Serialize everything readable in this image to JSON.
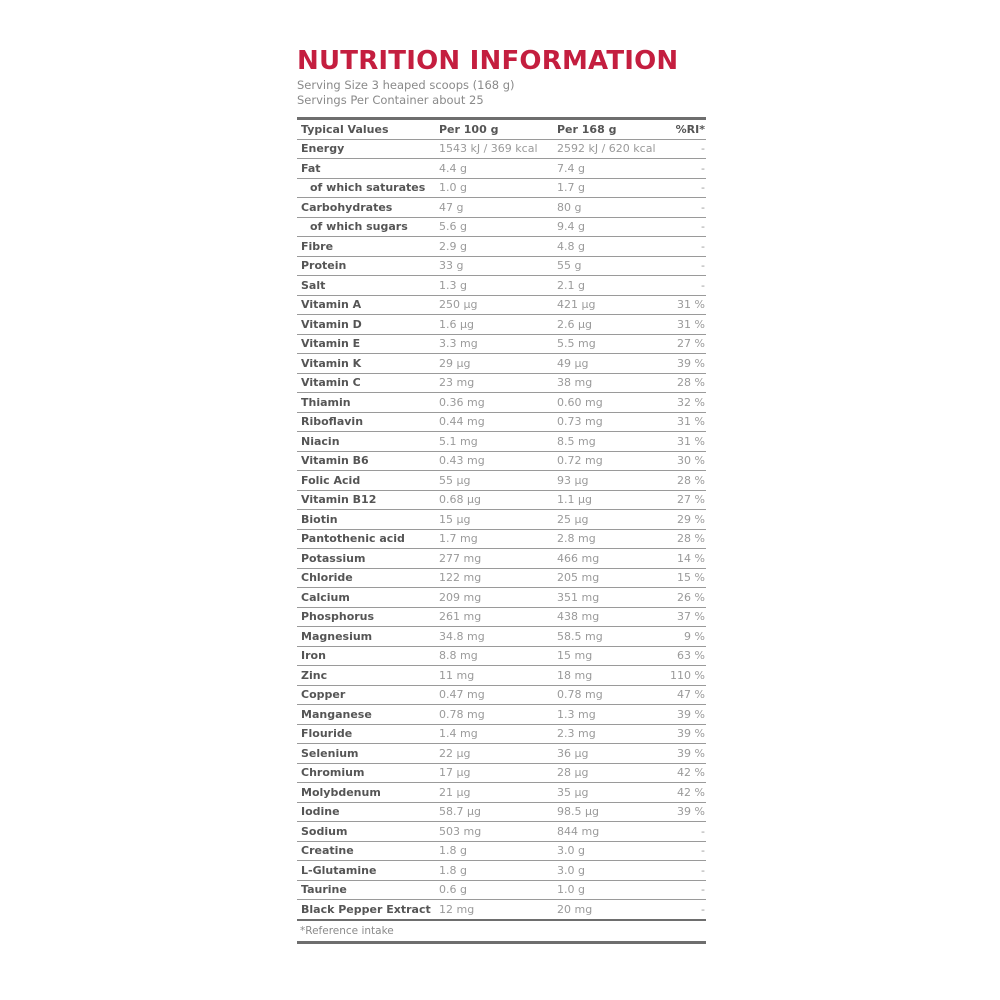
{
  "title": "NUTRITION INFORMATION",
  "serving_size": "Serving Size 3 heaped scoops (168 g)",
  "servings_per_container": "Servings Per Container about 25",
  "headers": [
    "Typical Values",
    "Per 100 g",
    "Per 168 g",
    "%RI*"
  ],
  "rows": [
    {
      "name": "Energy",
      "per100": "1543 kJ / 369 kcal",
      "per168": "2592 kJ / 620 kcal",
      "ri": "-"
    },
    {
      "name": "Fat",
      "per100": "4.4 g",
      "per168": "7.4 g",
      "ri": "-"
    },
    {
      "name": "of which saturates",
      "per100": "1.0 g",
      "per168": "1.7 g",
      "ri": "-",
      "indent": true
    },
    {
      "name": "Carbohydrates",
      "per100": "47 g",
      "per168": "80 g",
      "ri": "-"
    },
    {
      "name": "of which sugars",
      "per100": "5.6 g",
      "per168": "9.4 g",
      "ri": "-",
      "indent": true
    },
    {
      "name": "Fibre",
      "per100": "2.9 g",
      "per168": "4.8 g",
      "ri": "-"
    },
    {
      "name": "Protein",
      "per100": "33 g",
      "per168": "55 g",
      "ri": "-"
    },
    {
      "name": "Salt",
      "per100": "1.3 g",
      "per168": "2.1 g",
      "ri": "-"
    },
    {
      "name": "Vitamin A",
      "per100": "250 µg",
      "per168": "421 µg",
      "ri": "31 %"
    },
    {
      "name": "Vitamin D",
      "per100": "1.6 µg",
      "per168": "2.6 µg",
      "ri": "31 %"
    },
    {
      "name": "Vitamin E",
      "per100": "3.3 mg",
      "per168": "5.5 mg",
      "ri": "27 %"
    },
    {
      "name": "Vitamin K",
      "per100": "29 µg",
      "per168": "49 µg",
      "ri": "39 %"
    },
    {
      "name": "Vitamin C",
      "per100": "23 mg",
      "per168": "38 mg",
      "ri": "28 %"
    },
    {
      "name": "Thiamin",
      "per100": "0.36 mg",
      "per168": "0.60 mg",
      "ri": "32 %"
    },
    {
      "name": "Riboflavin",
      "per100": "0.44 mg",
      "per168": "0.73 mg",
      "ri": "31 %"
    },
    {
      "name": "Niacin",
      "per100": "5.1 mg",
      "per168": "8.5 mg",
      "ri": "31 %"
    },
    {
      "name": "Vitamin B6",
      "per100": "0.43 mg",
      "per168": "0.72 mg",
      "ri": "30 %"
    },
    {
      "name": "Folic Acid",
      "per100": "55 µg",
      "per168": "93 µg",
      "ri": "28 %"
    },
    {
      "name": "Vitamin B12",
      "per100": "0.68 µg",
      "per168": "1.1 µg",
      "ri": "27 %"
    },
    {
      "name": "Biotin",
      "per100": "15 µg",
      "per168": "25 µg",
      "ri": "29 %"
    },
    {
      "name": "Pantothenic acid",
      "per100": "1.7 mg",
      "per168": "2.8 mg",
      "ri": "28 %"
    },
    {
      "name": "Potassium",
      "per100": "277 mg",
      "per168": "466 mg",
      "ri": "14 %"
    },
    {
      "name": "Chloride",
      "per100": "122 mg",
      "per168": "205 mg",
      "ri": "15 %"
    },
    {
      "name": "Calcium",
      "per100": "209 mg",
      "per168": "351 mg",
      "ri": "26 %"
    },
    {
      "name": "Phosphorus",
      "per100": "261 mg",
      "per168": "438 mg",
      "ri": "37 %"
    },
    {
      "name": "Magnesium",
      "per100": "34.8 mg",
      "per168": "58.5 mg",
      "ri": "9 %"
    },
    {
      "name": "Iron",
      "per100": "8.8 mg",
      "per168": "15 mg",
      "ri": "63 %"
    },
    {
      "name": "Zinc",
      "per100": "11 mg",
      "per168": "18 mg",
      "ri": "110 %"
    },
    {
      "name": "Copper",
      "per100": "0.47 mg",
      "per168": "0.78 mg",
      "ri": "47 %"
    },
    {
      "name": "Manganese",
      "per100": "0.78 mg",
      "per168": "1.3 mg",
      "ri": "39 %"
    },
    {
      "name": "Flouride",
      "per100": "1.4 mg",
      "per168": "2.3 mg",
      "ri": "39 %"
    },
    {
      "name": "Selenium",
      "per100": "22 µg",
      "per168": "36 µg",
      "ri": "39 %"
    },
    {
      "name": "Chromium",
      "per100": "17 µg",
      "per168": "28 µg",
      "ri": "42 %"
    },
    {
      "name": "Molybdenum",
      "per100": "21 µg",
      "per168": "35 µg",
      "ri": "42 %"
    },
    {
      "name": "Iodine",
      "per100": "58.7 µg",
      "per168": "98.5 µg",
      "ri": "39 %"
    },
    {
      "name": "Sodium",
      "per100": "503 mg",
      "per168": "844 mg",
      "ri": "-"
    },
    {
      "name": "Creatine",
      "per100": "1.8 g",
      "per168": "3.0 g",
      "ri": "-"
    },
    {
      "name": "L-Glutamine",
      "per100": "1.8 g",
      "per168": "3.0 g",
      "ri": "-"
    },
    {
      "name": "Taurine",
      "per100": "0.6 g",
      "per168": "1.0 g",
      "ri": "-"
    },
    {
      "name": "Black Pepper Extract",
      "per100": "12 mg",
      "per168": "20 mg",
      "ri": "-"
    }
  ],
  "footnote": "*Reference intake",
  "colors": {
    "title": "#c41e3f",
    "text": "#555555",
    "values": "#9a9a9a",
    "rules": "#6e6e6e"
  }
}
